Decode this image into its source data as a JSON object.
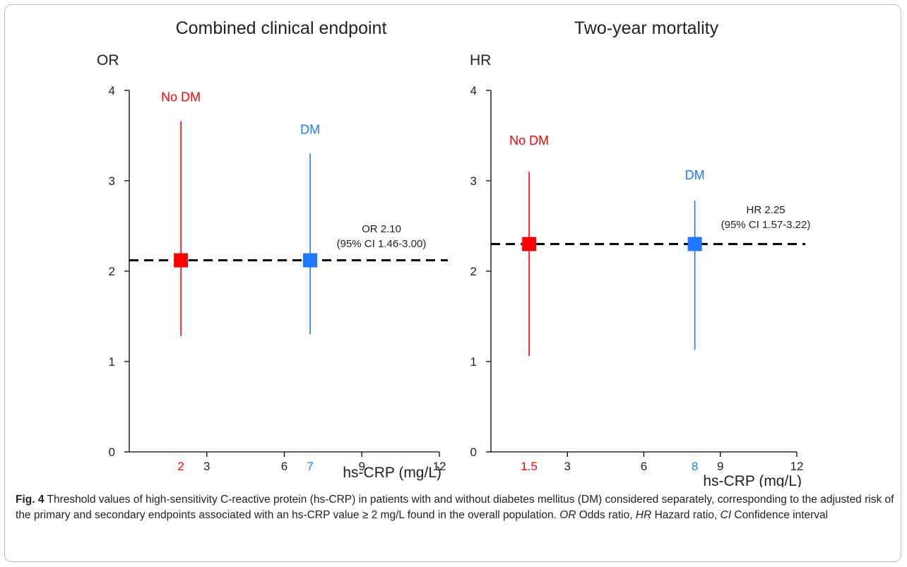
{
  "colors": {
    "no_dm": "#ff0000",
    "dm": "#1e78ff",
    "text": "#222222",
    "axis": "#000000"
  },
  "chart_data": [
    {
      "type": "scatter",
      "title": "Combined clinical endpoint",
      "ylabel": "OR",
      "xlabel": "hs-CRP (mg/L)",
      "xlim": [
        0,
        12
      ],
      "ylim": [
        0,
        4
      ],
      "xticks": [
        3,
        6,
        9,
        12
      ],
      "yticks": [
        0,
        1,
        2,
        3,
        4
      ],
      "series": [
        {
          "name": "No DM",
          "color": "#ff0000",
          "x": 2,
          "y": 2.12,
          "low": 1.28,
          "high": 3.66,
          "x_label": "2"
        },
        {
          "name": "DM",
          "color": "#1e78ff",
          "x": 7,
          "y": 2.12,
          "low": 1.3,
          "high": 3.3,
          "x_label": "7"
        }
      ],
      "reference_line": {
        "y": 2.12,
        "style": "dashed"
      },
      "annotation": {
        "line1": "OR 2.10",
        "line2": "(95% CI 1.46-3.00)"
      }
    },
    {
      "type": "scatter",
      "title": "Two-year mortality",
      "ylabel": "HR",
      "xlabel": "hs-CRP (mg/L)",
      "xlim": [
        0,
        12
      ],
      "ylim": [
        0,
        4
      ],
      "xticks": [
        3,
        6,
        9,
        12
      ],
      "yticks": [
        0,
        1,
        2,
        3,
        4
      ],
      "series": [
        {
          "name": "No DM",
          "color": "#ff0000",
          "x": 1.5,
          "y": 2.3,
          "low": 1.06,
          "high": 3.1,
          "x_label": "1.5"
        },
        {
          "name": "DM",
          "color": "#1e78ff",
          "x": 8,
          "y": 2.3,
          "low": 1.13,
          "high": 2.78,
          "x_label": "8"
        }
      ],
      "reference_line": {
        "y": 2.3,
        "style": "dashed"
      },
      "annotation": {
        "line1": "HR 2.25",
        "line2": "(95% CI 1.57-3.22)"
      }
    }
  ],
  "caption": {
    "fig_label": "Fig. 4",
    "part1": " Threshold values of high-sensitivity C-reactive protein (hs-CRP) in patients with and without diabetes mellitus (DM) considered separately, corresponding to the adjusted risk of the primary and secondary endpoints associated with an hs-CRP value ≥ 2 mg/L found in the overall population. ",
    "or_abbr": "OR",
    "or_text": " Odds ratio, ",
    "hr_abbr": "HR",
    "hr_text": " Hazard ratio, ",
    "ci_abbr": "CI",
    "ci_text": " Confidence interval"
  }
}
